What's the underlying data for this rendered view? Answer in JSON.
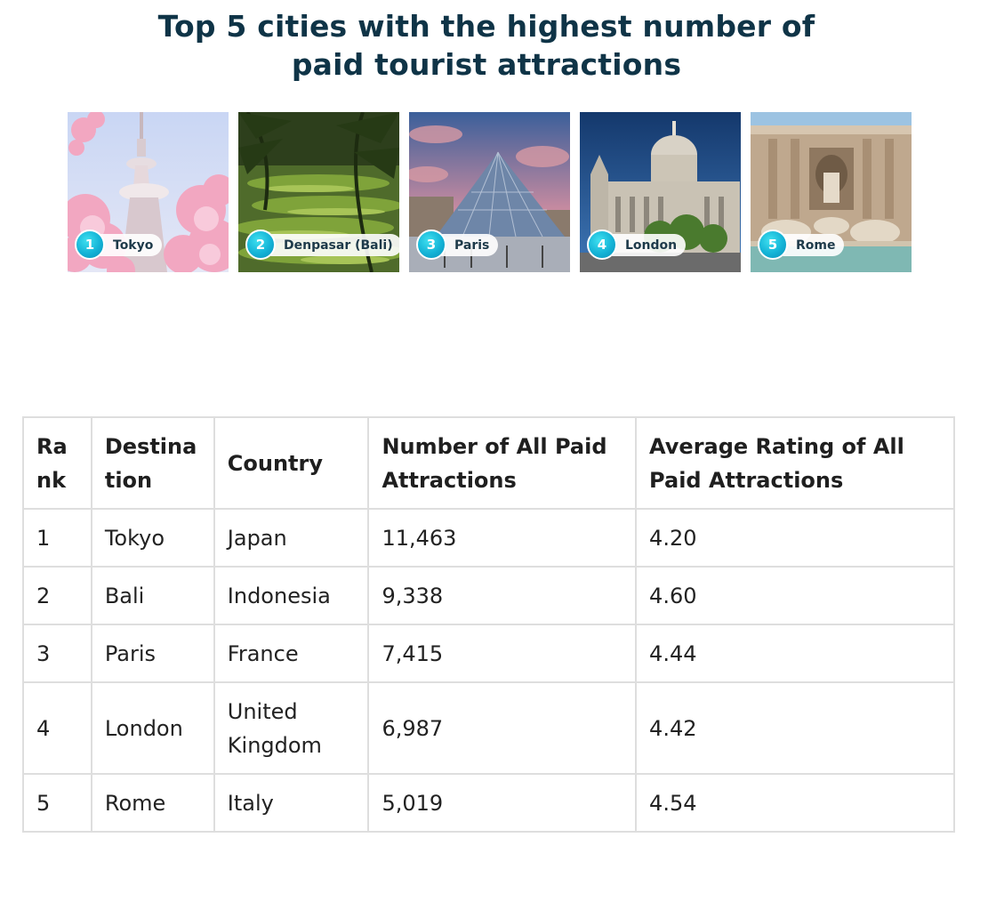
{
  "title": {
    "line1": "Top 5 cities with the highest number of",
    "line2": "paid tourist attractions"
  },
  "cities": [
    {
      "rank": "1",
      "label": "Tokyo"
    },
    {
      "rank": "2",
      "label": "Denpasar (Bali)"
    },
    {
      "rank": "3",
      "label": "Paris"
    },
    {
      "rank": "4",
      "label": "London"
    },
    {
      "rank": "5",
      "label": "Rome"
    }
  ],
  "table": {
    "headers": {
      "rank": "Ra nk",
      "destination": "Destina tion",
      "country": "Country",
      "attractions": "Number of All Paid Attractions",
      "rating": "Average Rating of All Paid Attractions"
    },
    "rows": [
      {
        "rank": "1",
        "destination": "Tokyo",
        "country": "Japan",
        "attractions": "11,463",
        "rating": "4.20"
      },
      {
        "rank": "2",
        "destination": "Bali",
        "country": "Indonesia",
        "attractions": "9,338",
        "rating": "4.60"
      },
      {
        "rank": "3",
        "destination": "Paris",
        "country": "France",
        "attractions": "7,415",
        "rating": "4.44"
      },
      {
        "rank": "4",
        "destination": "London",
        "country": "United Kingdom",
        "attractions": "6,987",
        "rating": "4.42"
      },
      {
        "rank": "5",
        "destination": "Rome",
        "country": "Italy",
        "attractions": "5,019",
        "rating": "4.54"
      }
    ]
  },
  "colors": {
    "title": "#0f3447",
    "badge": "#14b3d6",
    "border": "#dedede"
  }
}
